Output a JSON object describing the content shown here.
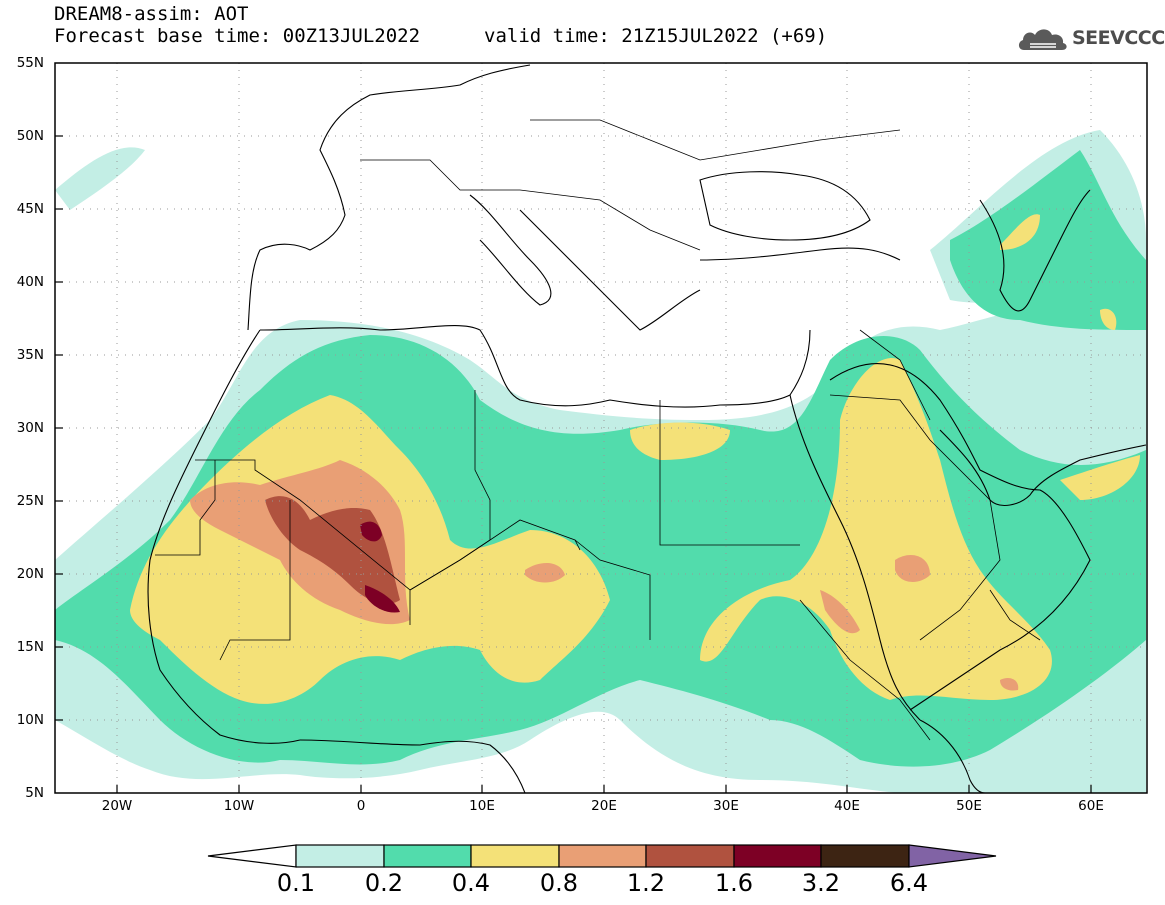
{
  "header": {
    "title_line1": "DREAM8-assim: AOT",
    "title_line2": "Forecast base time: 00Z13JUL2022",
    "valid_time": "valid time: 21Z15JUL2022 (+69)",
    "logo_text": "SEEVCCC",
    "logo_icon": "cloud-icon"
  },
  "map": {
    "lat_range": [
      5,
      55
    ],
    "lon_range": [
      -25,
      65
    ],
    "lat_ticks": [
      "55N",
      "50N",
      "45N",
      "40N",
      "35N",
      "30N",
      "25N",
      "20N",
      "15N",
      "10N",
      "5N"
    ],
    "lon_ticks": [
      "20W",
      "10W",
      "0",
      "10E",
      "20E",
      "30E",
      "40E",
      "50E",
      "60E"
    ],
    "lat_tick_values": [
      55,
      50,
      45,
      40,
      35,
      30,
      25,
      20,
      15,
      10,
      5
    ],
    "lon_tick_values": [
      -20,
      -10,
      0,
      10,
      20,
      30,
      40,
      50,
      60
    ],
    "grid": true,
    "projection": "lat-lon"
  },
  "colorbar": {
    "labels": [
      "0.1",
      "0.2",
      "0.4",
      "0.8",
      "1.2",
      "1.6",
      "3.2",
      "6.4"
    ],
    "colors": [
      "#ffffff",
      "#c3eee5",
      "#52dcac",
      "#f4e178",
      "#e99f75",
      "#b0523f",
      "#7d0025",
      "#3d2413",
      "#8163a5"
    ]
  }
}
